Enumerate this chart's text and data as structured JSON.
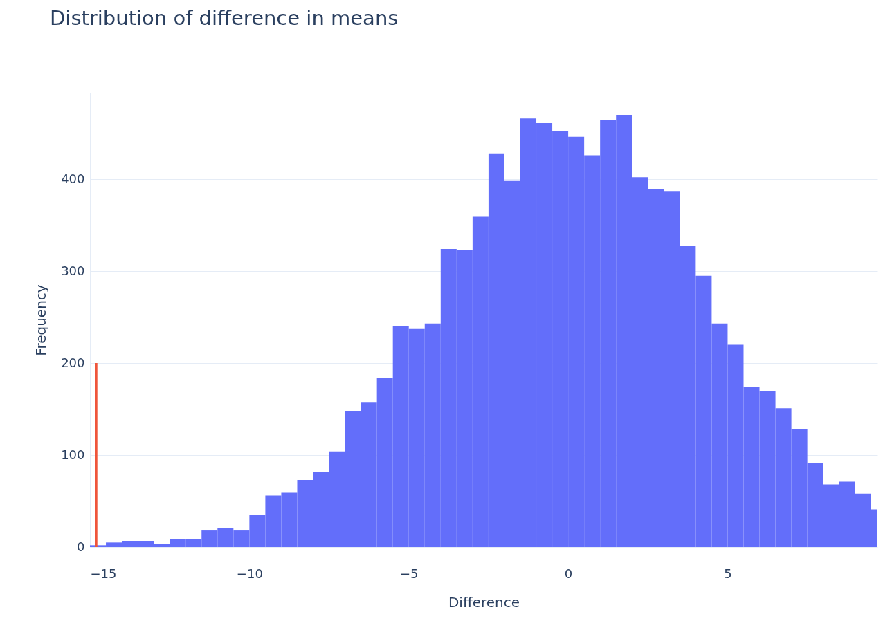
{
  "chart_data": {
    "type": "histogram",
    "title": "Distribution of difference in means",
    "xlabel": "Difference",
    "ylabel": "Frequency",
    "color": "#636efa",
    "bins": [
      -15,
      -14.5,
      -14,
      -13.5,
      -13,
      -12.5,
      -12,
      -11.5,
      -11,
      -10.5,
      -10,
      -9.5,
      -9,
      -8.5,
      -8,
      -7.5,
      -7,
      -6.5,
      -6,
      -5.5,
      -5,
      -4.5,
      -4,
      -3.5,
      -3,
      -2.5,
      -2,
      -1.5,
      -1,
      -0.5,
      0,
      0.5,
      1,
      1.5,
      2,
      2.5,
      3,
      3.5,
      4,
      4.5,
      5,
      5.5,
      6,
      6.5,
      7,
      7.5,
      8,
      8.5,
      9,
      9.5,
      10
    ],
    "values": [
      2,
      5,
      6,
      6,
      3,
      9,
      9,
      18,
      21,
      18,
      35,
      56,
      59,
      73,
      82,
      104,
      148,
      157,
      184,
      240,
      237,
      243,
      324,
      323,
      359,
      428,
      398,
      466,
      461,
      452,
      446,
      426,
      464,
      470,
      402,
      389,
      387,
      327,
      295,
      243,
      220,
      174,
      170,
      151,
      128,
      91,
      68,
      71,
      58,
      41
    ],
    "series": [
      {
        "type": "line",
        "x": [
          -14.8,
          -14.8
        ],
        "values": [
          0,
          200
        ],
        "color": "#ef553b"
      }
    ],
    "xlim": [
      -15,
      9.7
    ],
    "ylim": [
      0,
      494
    ],
    "xticks": [
      {
        "value": -15,
        "label": "−15"
      },
      {
        "value": -10,
        "label": "−10"
      },
      {
        "value": -5,
        "label": "−5"
      },
      0,
      5
    ],
    "yticks": [
      0,
      100,
      200,
      300,
      400
    ],
    "grid": "y"
  }
}
